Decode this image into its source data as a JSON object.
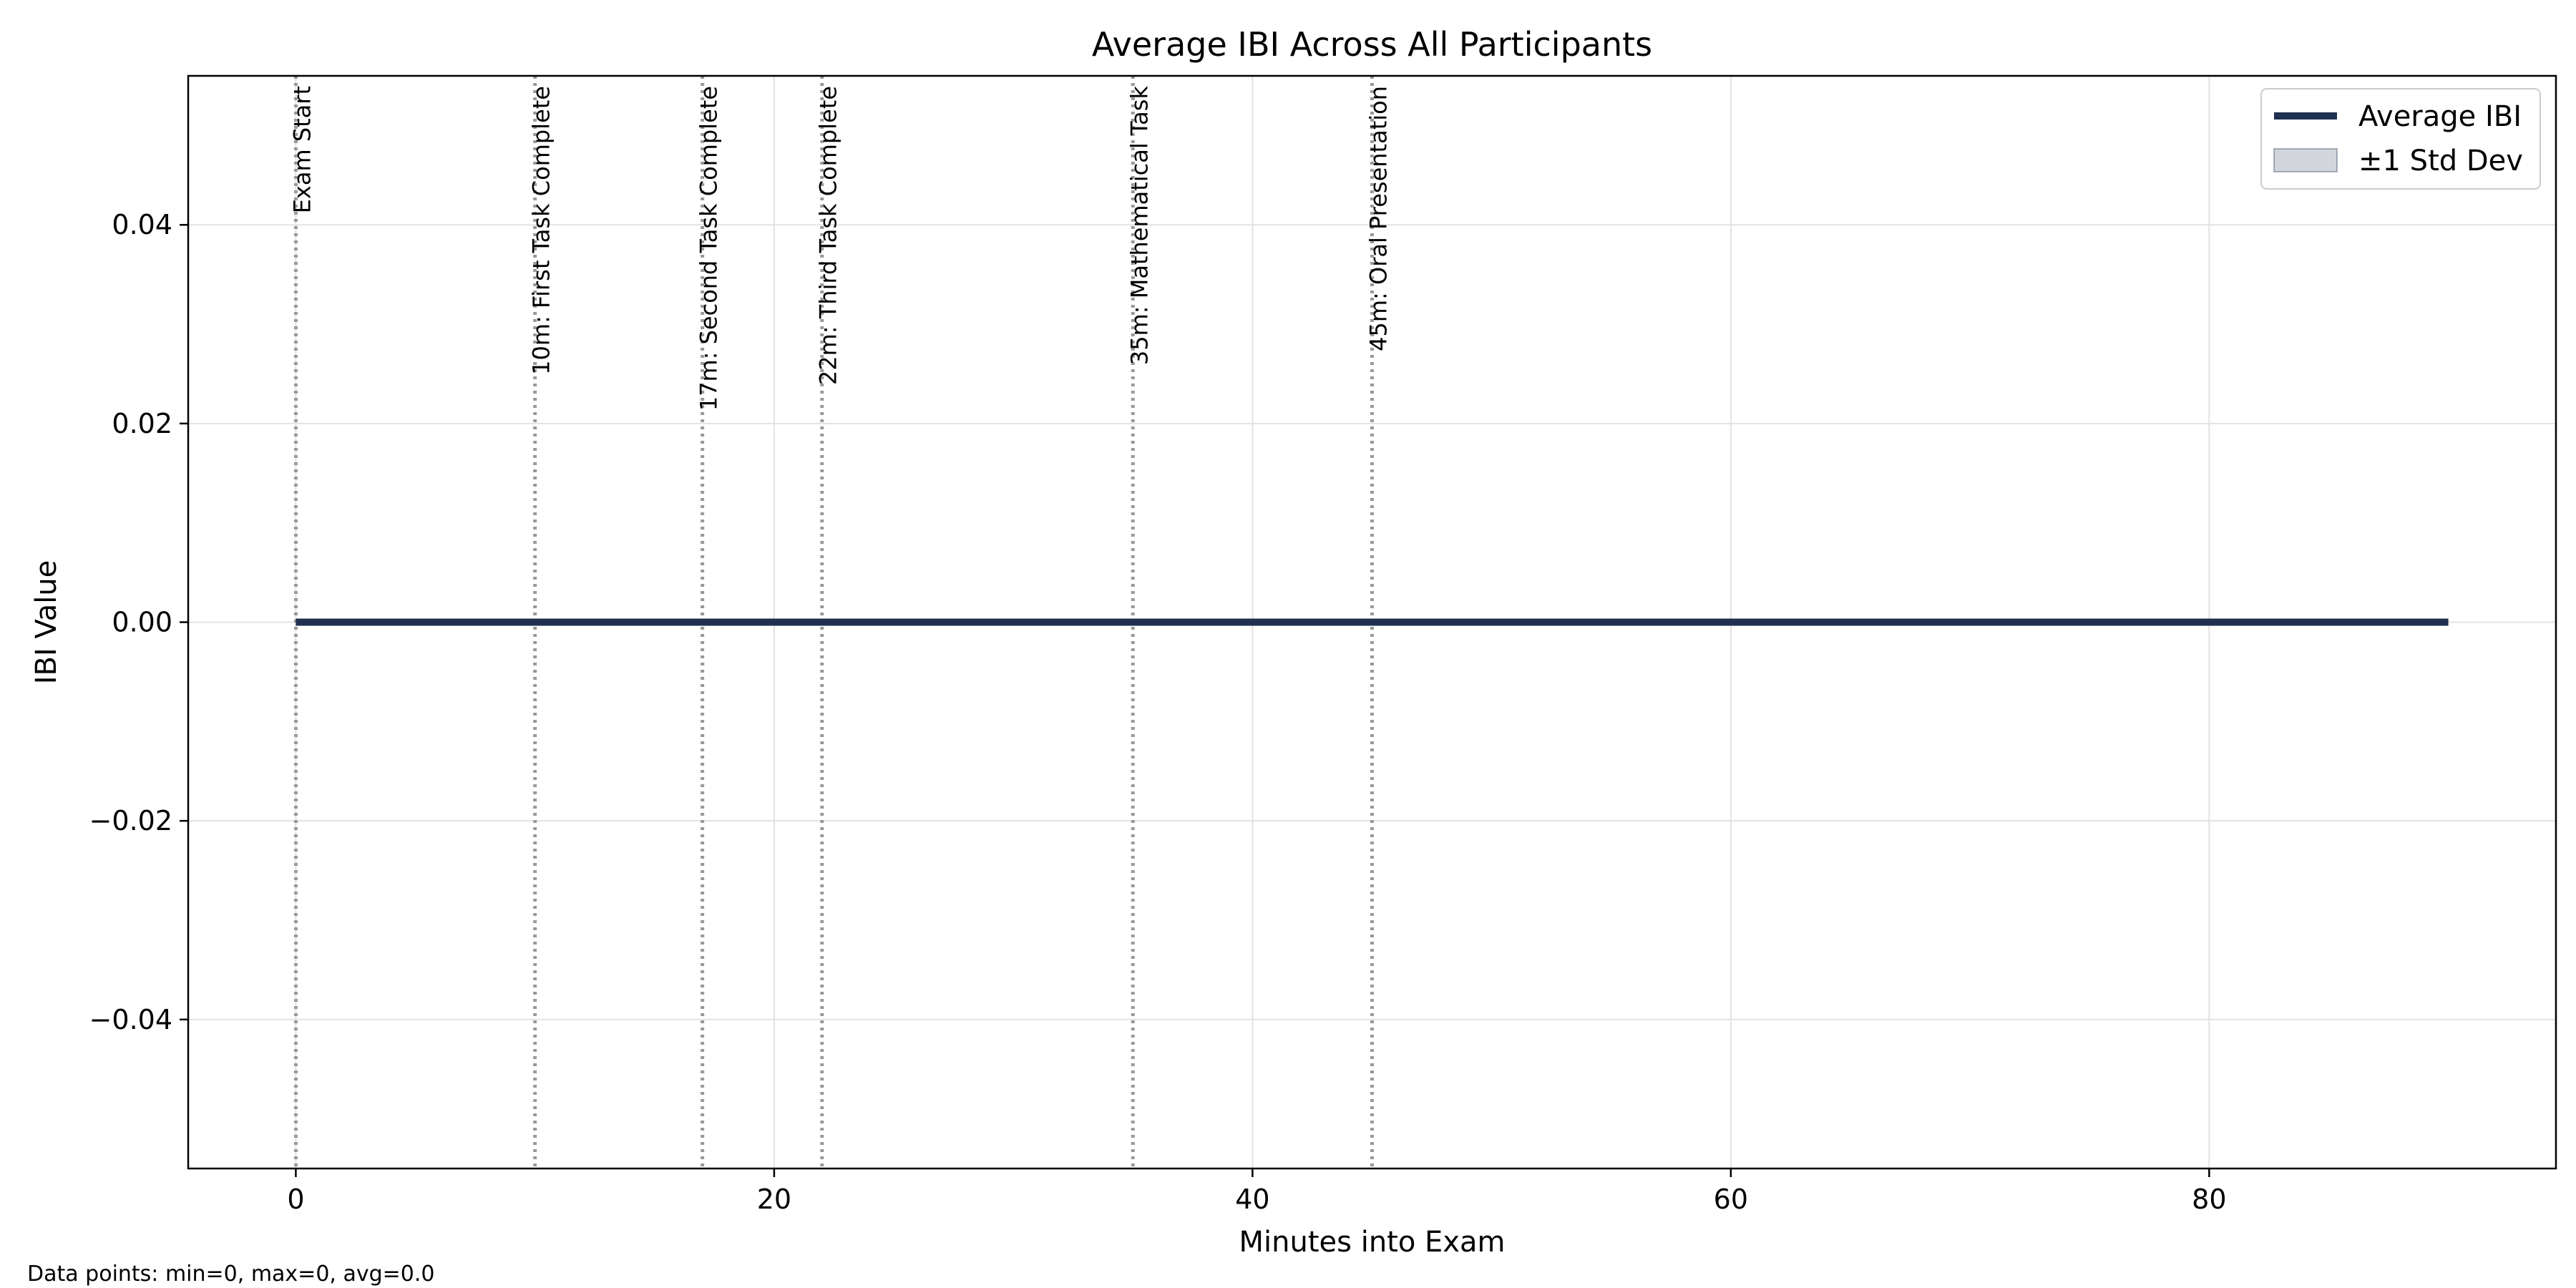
{
  "chart_data": {
    "type": "line",
    "title": "Average IBI Across All Participants",
    "xlabel": "Minutes into Exam",
    "ylabel": "IBI Value",
    "xlim": [
      -4.5,
      94.5
    ],
    "ylim": [
      -0.055,
      0.055
    ],
    "x_ticks": [
      0,
      20,
      40,
      60,
      80
    ],
    "x_tick_labels": [
      "0",
      "20",
      "40",
      "60",
      "80"
    ],
    "y_ticks": [
      0.04,
      0.02,
      0.0,
      -0.02,
      -0.04
    ],
    "y_tick_labels": [
      "0.04",
      "0.02",
      "0.00",
      "−0.02",
      "−0.04"
    ],
    "grid": true,
    "legend_position": "top-right",
    "series": [
      {
        "name": "Average IBI",
        "color": "#1f3050",
        "x": [
          0,
          90
        ],
        "y": [
          0.0,
          0.0
        ]
      }
    ],
    "band": {
      "name": "±1 Std Dev",
      "color": "#1f3050",
      "opacity": 0.2,
      "x": [
        0,
        90
      ],
      "lower": [
        0.0,
        0.0
      ],
      "upper": [
        0.0,
        0.0
      ]
    },
    "events": [
      {
        "x": 0,
        "label": "Exam Start"
      },
      {
        "x": 10,
        "label": "10m: First Task Complete"
      },
      {
        "x": 17,
        "label": "17m: Second Task Complete"
      },
      {
        "x": 22,
        "label": "22m: Third Task Complete"
      },
      {
        "x": 35,
        "label": "35m: Mathematical Task"
      },
      {
        "x": 45,
        "label": "45m: Oral Presentation"
      }
    ],
    "event_line_color": "#999999"
  },
  "footnote": "Data points: min=0, max=0, avg=0.0"
}
